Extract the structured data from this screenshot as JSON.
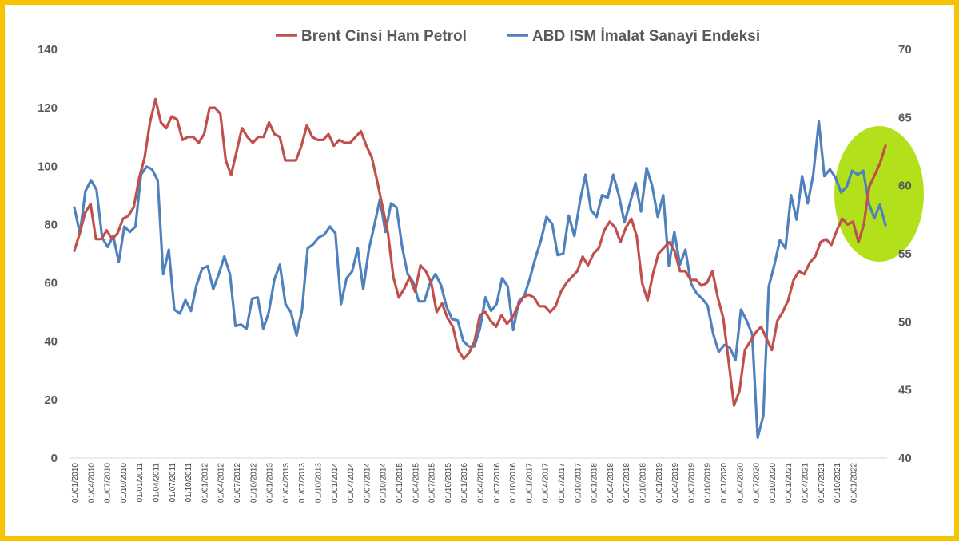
{
  "chart_data": {
    "type": "line",
    "title": "",
    "colors": {
      "brent": "#c0504d",
      "ism": "#4f81bd",
      "highlight": "#b2e01a",
      "frame": "#f5c400",
      "axis_text": "#595959"
    },
    "legend": [
      "Brent Cinsi Ham Petrol",
      "ABD ISM İmalat Sanayi Endeksi"
    ],
    "left_axis": {
      "min": 0,
      "max": 140,
      "ticks": [
        "0",
        "20",
        "40",
        "60",
        "80",
        "100",
        "120",
        "140"
      ]
    },
    "right_axis": {
      "min": 40,
      "max": 70,
      "ticks": [
        "40",
        "45",
        "50",
        "55",
        "60",
        "65",
        "70"
      ]
    },
    "x_tick_labels": [
      "01/01/2010",
      "01/04/2010",
      "01/07/2010",
      "01/10/2010",
      "01/01/2011",
      "01/04/2011",
      "01/07/2011",
      "01/10/2011",
      "01/01/2012",
      "01/04/2012",
      "01/07/2012",
      "01/10/2012",
      "01/01/2013",
      "01/04/2013",
      "01/07/2013",
      "01/10/2013",
      "01/01/2014",
      "01/04/2014",
      "01/07/2014",
      "01/10/2014",
      "01/01/2015",
      "01/04/2015",
      "01/07/2015",
      "01/10/2015",
      "01/01/2016",
      "01/04/2016",
      "01/07/2016",
      "01/10/2016",
      "01/01/2017",
      "01/04/2017",
      "01/07/2017",
      "01/10/2017",
      "01/01/2018",
      "01/04/2018",
      "01/07/2018",
      "01/10/2018",
      "01/01/2019",
      "01/04/2019",
      "01/07/2019",
      "01/10/2019",
      "01/01/2020",
      "01/04/2020",
      "01/07/2020",
      "01/10/2020",
      "01/01/2021",
      "01/04/2021",
      "01/07/2021",
      "01/10/2021",
      "01/01/2022"
    ],
    "series": [
      {
        "name": "Brent Cinsi Ham Petrol",
        "axis": "left",
        "values": [
          71,
          77,
          84,
          87,
          75,
          75,
          78,
          75,
          77,
          82,
          83,
          86,
          96,
          103,
          115,
          123,
          115,
          113,
          117,
          116,
          109,
          110,
          110,
          108,
          111,
          120,
          120,
          118,
          102,
          97,
          105,
          113,
          110,
          108,
          110,
          110,
          115,
          111,
          110,
          102,
          102,
          102,
          107,
          114,
          110,
          109,
          109,
          111,
          107,
          109,
          108,
          108,
          110,
          112,
          107,
          103,
          95,
          86,
          77,
          62,
          55,
          58,
          62,
          57,
          66,
          64,
          60,
          50,
          53,
          48,
          45,
          37,
          34,
          36,
          40,
          49,
          50,
          47,
          45,
          49,
          46,
          48,
          52,
          55,
          56,
          55,
          52,
          52,
          50,
          52,
          57,
          60,
          62,
          64,
          69,
          66,
          70,
          72,
          78,
          81,
          79,
          74,
          79,
          82,
          76,
          60,
          54,
          63,
          70,
          72,
          74,
          71,
          64,
          64,
          61,
          61,
          59,
          60,
          64,
          55,
          48,
          33,
          18,
          23,
          37,
          40,
          43,
          45,
          41,
          37,
          47,
          50,
          54,
          61,
          64,
          63,
          67,
          69,
          74,
          75,
          73,
          78,
          82,
          80,
          81,
          74,
          80,
          93,
          97,
          101,
          107
        ]
      },
      {
        "name": "ABD ISM İmalat Sanayi Endeksi",
        "axis": "right",
        "values": [
          58.4,
          56.5,
          59.6,
          60.4,
          59.7,
          56.2,
          55.5,
          56.3,
          54.4,
          57.0,
          56.6,
          57.0,
          60.8,
          61.4,
          61.2,
          60.4,
          53.5,
          55.3,
          50.9,
          50.6,
          51.6,
          50.8,
          52.7,
          53.9,
          54.1,
          52.4,
          53.5,
          54.8,
          53.5,
          49.7,
          49.8,
          49.5,
          51.7,
          51.8,
          49.5,
          50.7,
          53.1,
          54.2,
          51.3,
          50.7,
          49.0,
          50.9,
          55.4,
          55.7,
          56.2,
          56.4,
          57.0,
          56.5,
          51.3,
          53.2,
          53.7,
          55.4,
          52.4,
          55.3,
          57.1,
          59.0,
          56.6,
          58.7,
          58.4,
          55.5,
          53.5,
          52.9,
          51.5,
          51.5,
          52.8,
          53.5,
          52.7,
          51.1,
          50.2,
          50.1,
          48.6,
          48.2,
          48.2,
          49.5,
          51.8,
          50.8,
          51.3,
          53.2,
          52.6,
          49.4,
          51.5,
          51.9,
          53.2,
          54.7,
          56.0,
          57.7,
          57.2,
          54.9,
          55.0,
          57.8,
          56.3,
          58.8,
          60.8,
          58.2,
          57.7,
          59.3,
          59.1,
          60.8,
          59.3,
          57.3,
          58.7,
          60.2,
          58.1,
          61.3,
          60.0,
          57.7,
          59.3,
          54.1,
          56.6,
          54.2,
          55.3,
          52.8,
          52.1,
          51.7,
          51.2,
          49.1,
          47.8,
          48.3,
          48.1,
          47.2,
          50.9,
          50.1,
          49.1,
          41.5,
          43.1,
          52.6,
          54.2,
          56.0,
          55.4,
          59.3,
          57.5,
          60.7,
          58.7,
          60.8,
          64.7,
          60.7,
          61.2,
          60.6,
          59.5,
          59.9,
          61.1,
          60.8,
          61.1,
          58.7,
          57.6,
          58.6,
          57.1
        ]
      }
    ]
  }
}
